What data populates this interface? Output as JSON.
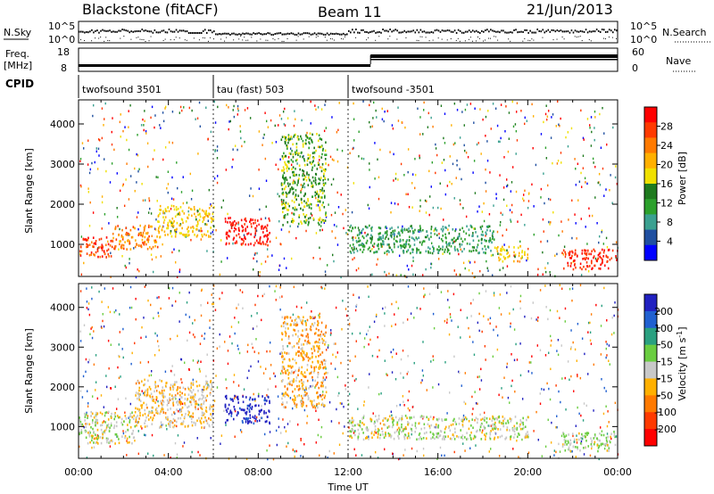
{
  "header": {
    "left_title": "Blackstone (fitACF)",
    "center_title": "Beam 11",
    "right_title": "21/Jun/2013"
  },
  "status_panel": {
    "nsky_label": "N.Sky",
    "nsearch_label": "N.Search",
    "nsky_ticks": [
      "10^5",
      "10^0"
    ],
    "nsearch_ticks": [
      "10^5",
      "10^0"
    ],
    "freq_label_1": "Freq.",
    "freq_label_2": "[MHz]",
    "freq_ticks": [
      "18",
      "8"
    ],
    "nave_label": "Nave",
    "nave_ticks": [
      "60",
      "0"
    ],
    "cpid_label": "CPID",
    "cpid_segments": [
      {
        "label": "twofsound 3501",
        "start_hour": 0,
        "end_hour": 6
      },
      {
        "label": "tau (fast) 503",
        "start_hour": 6,
        "end_hour": 12
      },
      {
        "label": "twofsound -3501",
        "start_hour": 12,
        "end_hour": 24
      }
    ]
  },
  "chart_data": [
    {
      "type": "heatmap",
      "name": "power",
      "ylabel": "Slant Range [km]",
      "ylim": [
        200,
        4600
      ],
      "xlim": [
        0,
        24
      ],
      "yticks": [
        1000,
        2000,
        3000,
        4000
      ],
      "colorbar": {
        "label": "Power [dB]",
        "ticks": [
          "28",
          "24",
          "20",
          "16",
          "12",
          "8",
          "4"
        ],
        "colors": [
          "#ff0000",
          "#ff3a00",
          "#ff7a00",
          "#ffb000",
          "#f0e000",
          "#1e7a1e",
          "#2ca02c",
          "#3aa090",
          "#1f4fa0",
          "#0000ff"
        ]
      },
      "regions": [
        {
          "x0": 0.0,
          "x1": 1.5,
          "y0": 700,
          "y1": 1200,
          "level": 0.85
        },
        {
          "x0": 1.5,
          "x1": 3.5,
          "y0": 900,
          "y1": 1500,
          "level": 0.7
        },
        {
          "x0": 3.5,
          "x1": 6.0,
          "y0": 1200,
          "y1": 2000,
          "level": 0.55
        },
        {
          "x0": 6.5,
          "x1": 8.5,
          "y0": 1000,
          "y1": 1700,
          "level": 0.95
        },
        {
          "x0": 9.0,
          "x1": 11.0,
          "y0": 1500,
          "y1": 3800,
          "level": 0.4
        },
        {
          "x0": 12.0,
          "x1": 18.5,
          "y0": 800,
          "y1": 1500,
          "level": 0.25
        },
        {
          "x0": 18.5,
          "x1": 20.0,
          "y0": 600,
          "y1": 1000,
          "level": 0.55
        },
        {
          "x0": 21.5,
          "x1": 24.0,
          "y0": 400,
          "y1": 900,
          "level": 0.9
        }
      ]
    },
    {
      "type": "heatmap",
      "name": "velocity",
      "ylabel": "Slant Range [km]",
      "xlabel": "Time UT",
      "ylim": [
        200,
        4600
      ],
      "xlim": [
        0,
        24
      ],
      "yticks": [
        1000,
        2000,
        3000,
        4000
      ],
      "xticks": [
        {
          "hour": 0,
          "label": "00:00"
        },
        {
          "hour": 4,
          "label": "04:00"
        },
        {
          "hour": 8,
          "label": "08:00"
        },
        {
          "hour": 12,
          "label": "12:00"
        },
        {
          "hour": 16,
          "label": "16:00"
        },
        {
          "hour": 20,
          "label": "20:00"
        },
        {
          "hour": 24,
          "label": "00:00"
        }
      ],
      "colorbar": {
        "label": "Velocity [m s^-1]",
        "ticks": [
          "200",
          "100",
          "50",
          "15",
          "-15",
          "-50",
          "-100",
          "-200"
        ],
        "colors": [
          "#2020c0",
          "#2060d0",
          "#2aa080",
          "#6acd40",
          "#c8c8c8",
          "#ffb000",
          "#ff7a00",
          "#ff3a00",
          "#ff0000"
        ]
      },
      "regions": [
        {
          "x0": 0.0,
          "x1": 2.5,
          "y0": 600,
          "y1": 1400,
          "level": 0.45
        },
        {
          "x0": 2.5,
          "x1": 6.0,
          "y0": 1000,
          "y1": 2200,
          "level": 0.35
        },
        {
          "x0": 6.5,
          "x1": 8.5,
          "y0": 1100,
          "y1": 1800,
          "level": 0.95
        },
        {
          "x0": 9.0,
          "x1": 11.0,
          "y0": 1500,
          "y1": 3800,
          "level": 0.3
        },
        {
          "x0": 12.0,
          "x1": 20.0,
          "y0": 700,
          "y1": 1300,
          "level": 0.45
        },
        {
          "x0": 21.5,
          "x1": 24.0,
          "y0": 400,
          "y1": 900,
          "level": 0.5
        }
      ]
    }
  ]
}
